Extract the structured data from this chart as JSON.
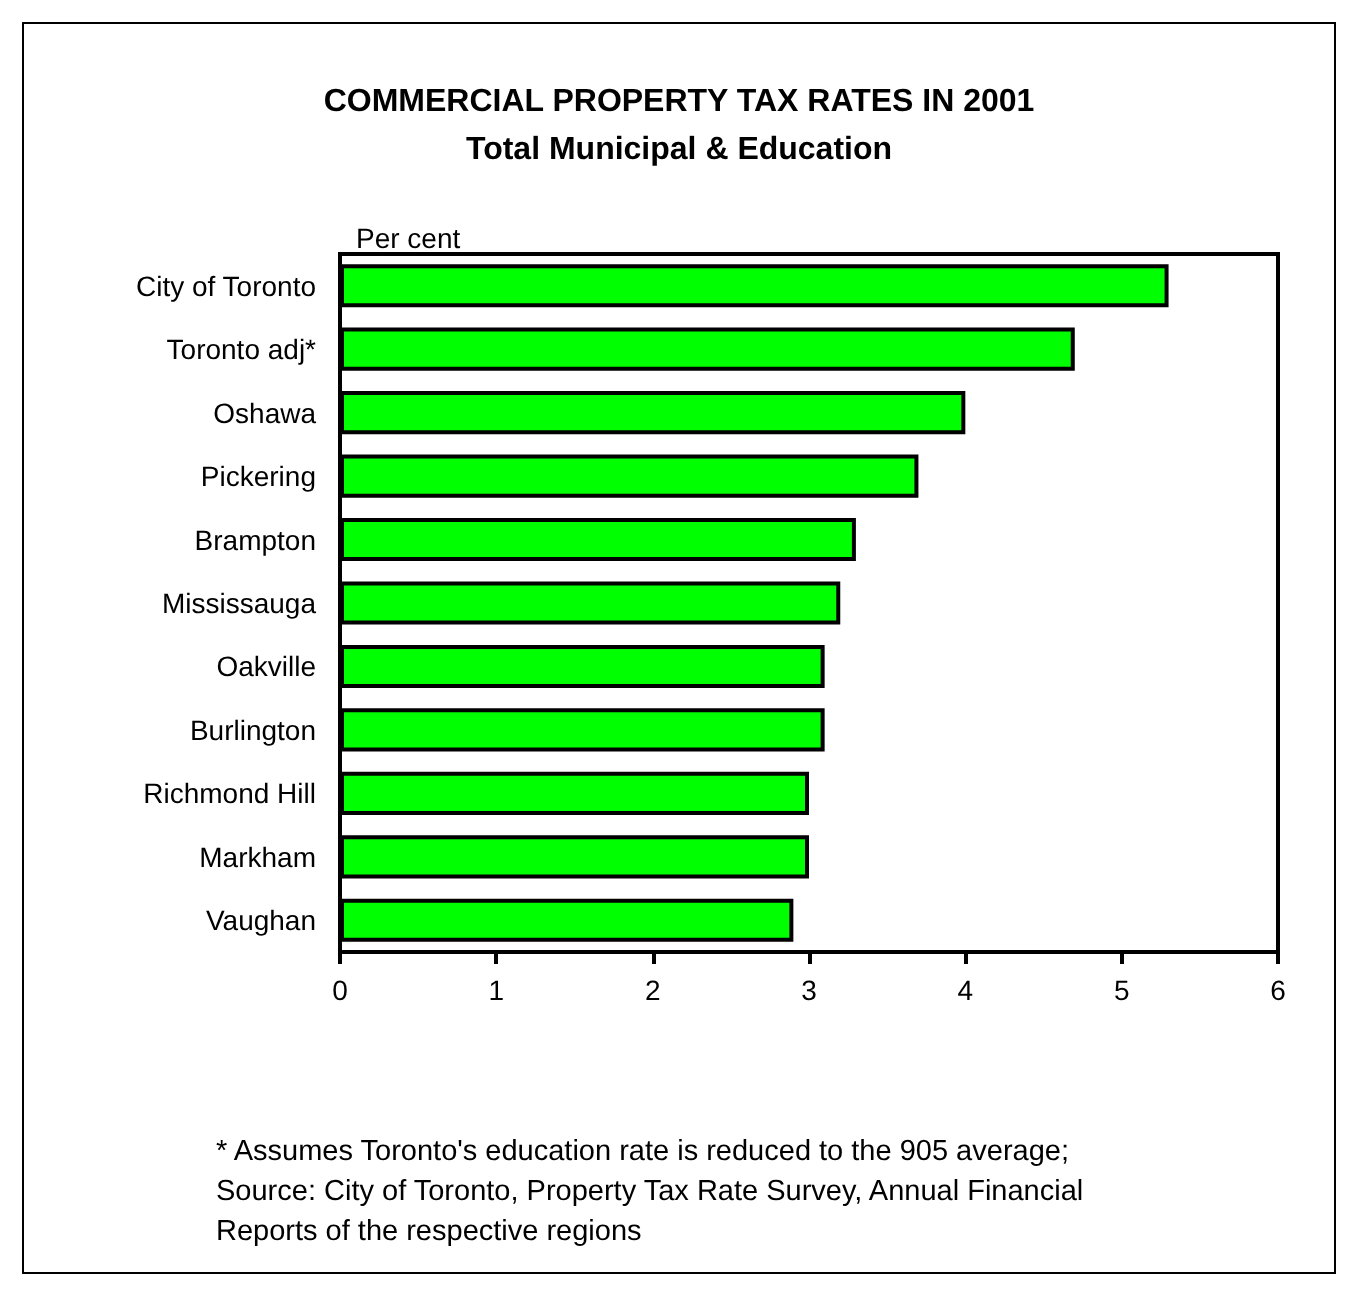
{
  "chart_data": {
    "type": "bar",
    "orientation": "horizontal",
    "title": "COMMERCIAL PROPERTY TAX RATES IN 2001",
    "subtitle": "Total Municipal & Education",
    "xlabel": "Per cent",
    "categories": [
      "City of Toronto",
      "Toronto adj*",
      "Oshawa",
      "Pickering",
      "Brampton",
      "Mississauga",
      "Oakville",
      "Burlington",
      "Richmond Hill",
      "Markham",
      "Vaughan"
    ],
    "values": [
      5.3,
      4.7,
      4.0,
      3.7,
      3.3,
      3.2,
      3.1,
      3.1,
      3.0,
      3.0,
      2.9
    ],
    "color": "#00ff00",
    "xlim": [
      0,
      6
    ],
    "xticks": [
      0,
      1,
      2,
      3,
      4,
      5,
      6
    ],
    "grid": false,
    "annotations": [
      "* Assumes Toronto's education rate is reduced to the 905 average; Source: City of Toronto, Property Tax Rate Survey, Annual Financial Reports of the respective regions"
    ]
  }
}
